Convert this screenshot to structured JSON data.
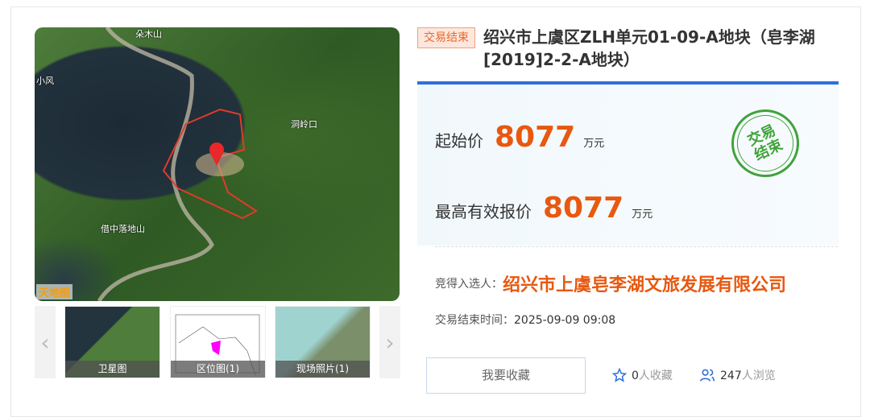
{
  "map": {
    "labels": [
      "朵木山",
      "小风",
      "洞岭口",
      "借中落地山"
    ],
    "logo": "天地图"
  },
  "gallery": {
    "prev": "‹",
    "next": "›",
    "thumbs": [
      {
        "label": "卫星图"
      },
      {
        "label": "区位图(1)"
      },
      {
        "label": "现场照片(1)"
      }
    ]
  },
  "listing": {
    "status_tag": "交易结束",
    "title": "绍兴市上虞区ZLH单元01-09-A地块（皂李湖[2019]2-2-A地块）",
    "start_price_label": "起始价",
    "start_price": "8077",
    "start_price_unit": "万元",
    "top_bid_label": "最高有效报价",
    "top_bid": "8077",
    "top_bid_unit": "万元",
    "stamp_text": "交易结束",
    "winner_label": "竞得入选人：",
    "winner": "绍兴市上虞皂李湖文旅发展有限公司",
    "end_time_label": "交易结束时间：",
    "end_time": "2025-09-09 09:08"
  },
  "actions": {
    "favorite_button": "我要收藏",
    "favorites_count": "0",
    "favorites_suffix": "人收藏",
    "views_count": "247",
    "views_suffix": "人浏览"
  },
  "colors": {
    "accent": "#e8580f",
    "blue": "#2f6fdc",
    "stamp": "#3fa33a"
  }
}
